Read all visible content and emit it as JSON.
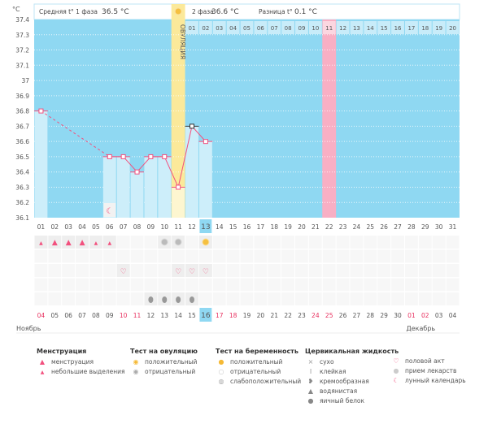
{
  "header": {
    "phase1_label": "Средняя t° 1 фаза",
    "phase1_value": "36.5 °C",
    "phase2_label": "2 фаза",
    "phase2_value": "36.6 °C",
    "diff_label": "Разница t°",
    "diff_value": "0.1 °C",
    "ovulation_label": "ОВУЛЯЦИЯ"
  },
  "colors": {
    "bg": "#8fd8f2",
    "bar": "#cdeefa",
    "ovulation": "#fbe99a",
    "pink": "#f8afc4",
    "line": "#f2507e"
  },
  "chart_data": {
    "type": "line",
    "yunit": "°C",
    "ylim": [
      36.1,
      37.4
    ],
    "yticks": [
      "37.4",
      "37.3",
      "37.2",
      "37.1",
      "37",
      "36.9",
      "36.8",
      "36.7",
      "36.6",
      "36.5",
      "36.4",
      "36.3",
      "36.2",
      "36.1"
    ],
    "days": [
      "01",
      "02",
      "03",
      "04",
      "05",
      "06",
      "07",
      "08",
      "09",
      "10",
      "11",
      "12",
      "13",
      "14",
      "15",
      "16",
      "17",
      "18",
      "19",
      "20",
      "21",
      "22",
      "23",
      "24",
      "25",
      "26",
      "27",
      "28",
      "29",
      "30",
      "31"
    ],
    "highlight_day": "13",
    "ovulation_day": "11",
    "cycle_days_from": 12,
    "cycle_days": [
      "01",
      "02",
      "03",
      "04",
      "05",
      "06",
      "07",
      "08",
      "09",
      "10",
      "11",
      "12",
      "13",
      "14",
      "15",
      "16",
      "17",
      "18",
      "19",
      "20"
    ],
    "pink_cycle_day": "11",
    "points": [
      {
        "day": 1,
        "t": 36.8
      },
      {
        "day": 6,
        "t": 36.5
      },
      {
        "day": 7,
        "t": 36.5
      },
      {
        "day": 8,
        "t": 36.4
      },
      {
        "day": 9,
        "t": 36.5
      },
      {
        "day": 10,
        "t": 36.5
      },
      {
        "day": 11,
        "t": 36.3
      },
      {
        "day": 12,
        "t": 36.7
      },
      {
        "day": 13,
        "t": 36.6
      }
    ],
    "dashed_segment": [
      1,
      6
    ],
    "moon_day": 6
  },
  "rows": {
    "menstruation": {
      "2": "big",
      "3": "big",
      "4": "big",
      "1": "small",
      "5": "small",
      "6": "small"
    },
    "ovulation_test": {
      "10": "neg",
      "11": "neg",
      "13": "pos"
    },
    "sex": [
      7,
      11,
      12,
      13
    ],
    "egg_white": [
      9,
      10,
      11,
      12
    ]
  },
  "calendar": {
    "dates": [
      "04",
      "05",
      "06",
      "07",
      "08",
      "09",
      "10",
      "11",
      "12",
      "13",
      "14",
      "15",
      "16",
      "17",
      "18",
      "19",
      "20",
      "21",
      "22",
      "23",
      "24",
      "25",
      "26",
      "27",
      "28",
      "29",
      "30",
      "01",
      "02",
      "03",
      "04"
    ],
    "red": [
      0,
      6,
      7,
      13,
      14,
      20,
      21,
      27,
      28
    ],
    "today_index": 12,
    "month1": "Ноябрь",
    "month2": "Декабрь"
  },
  "legend": {
    "menstruation": {
      "title": "Менструация",
      "items": [
        "менструация",
        "небольшие выделения"
      ]
    },
    "ovulation_test": {
      "title": "Тест на овуляцию",
      "items": [
        "положительный",
        "отрицательный"
      ]
    },
    "pregnancy_test": {
      "title": "Тест на беременность",
      "items": [
        "положительный",
        "отрицательный",
        "слабоположительный"
      ]
    },
    "cervical": {
      "title": "Цервикальная жидкость",
      "items": [
        "сухо",
        "клейкая",
        "кремообразная",
        "водянистая",
        "яичный белок"
      ]
    },
    "other": {
      "items": [
        "половой акт",
        "прием лекарств",
        "лунный календарь"
      ]
    }
  }
}
